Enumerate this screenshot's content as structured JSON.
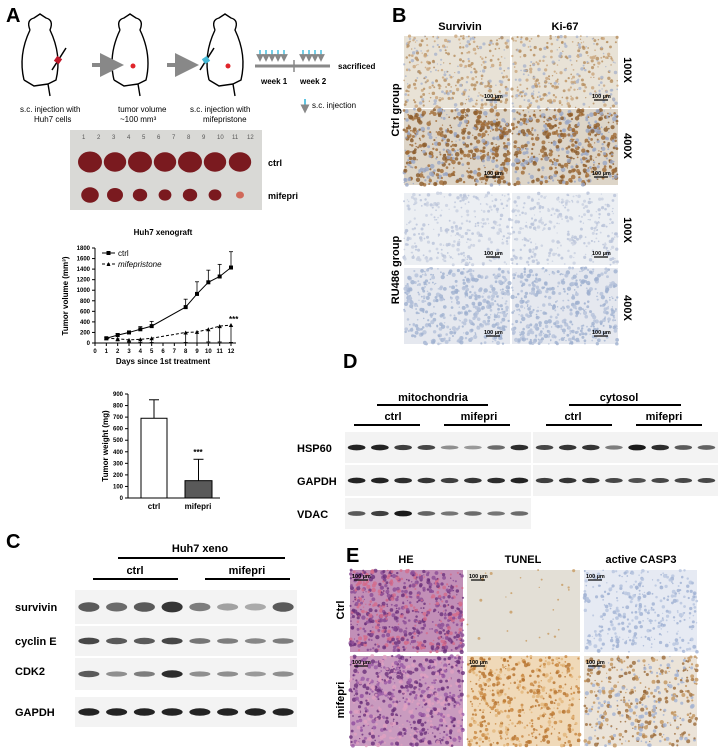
{
  "panels": {
    "a": "A",
    "b": "B",
    "c": "C",
    "d": "D",
    "e": "E"
  },
  "schematic": {
    "step1": [
      "s.c. injection with",
      "Huh7 cells"
    ],
    "step2": [
      "tumor volume",
      "~100 mm³"
    ],
    "step3": [
      "s.c. injection with",
      "mifepristone"
    ],
    "week1": "week 1",
    "week2": "week 2",
    "sacrificed": "sacrificed",
    "legend": "s.c. injection",
    "arrow_color": "#2ab3d9",
    "tumor_color": "#e0242a"
  },
  "tumor_photo": {
    "row_labels": [
      "ctrl",
      "mifepri"
    ],
    "ruler_numbers": [
      "1",
      "2",
      "3",
      "4",
      "5",
      "6",
      "7",
      "8",
      "9",
      "10",
      "11",
      "12"
    ]
  },
  "chart_data": [
    {
      "type": "line",
      "title": "Huh7 xenograft",
      "xlabel": "Days since 1st treatment",
      "ylabel": "Tumor volume (mm³)",
      "xlim": [
        0,
        12
      ],
      "ylim": [
        0,
        1800
      ],
      "xticks": [
        0,
        1,
        2,
        3,
        4,
        5,
        6,
        7,
        8,
        9,
        10,
        11,
        12
      ],
      "yticks": [
        0,
        200,
        400,
        600,
        800,
        1000,
        1200,
        1400,
        1600,
        1800
      ],
      "legend_position": "top-left",
      "x": [
        1,
        2,
        3,
        4,
        5,
        8,
        9,
        10,
        11,
        12
      ],
      "series": [
        {
          "name": "ctrl",
          "marker": "square",
          "style": "solid",
          "values": [
            90,
            150,
            200,
            260,
            320,
            680,
            930,
            1150,
            1260,
            1430
          ],
          "error": [
            15,
            30,
            25,
            50,
            90,
            150,
            230,
            230,
            230,
            300
          ]
        },
        {
          "name": "mifepristone",
          "marker": "triangle",
          "style": "dashed",
          "values": [
            90,
            80,
            60,
            70,
            90,
            200,
            210,
            260,
            320,
            340
          ],
          "error": [
            20,
            40,
            50,
            60,
            80,
            190,
            210,
            240,
            300,
            330
          ]
        }
      ],
      "annotation": "***"
    },
    {
      "type": "bar",
      "ylabel": "Tumor weight (mg)",
      "categories": [
        "ctrl",
        "mifepri"
      ],
      "values": [
        690,
        150
      ],
      "error": [
        160,
        185
      ],
      "colors": [
        "#ffffff",
        "#595959"
      ],
      "ylim": [
        0,
        900
      ],
      "yticks": [
        0,
        100,
        200,
        300,
        400,
        500,
        600,
        700,
        800,
        900
      ],
      "annotation": "***"
    }
  ],
  "ihc": {
    "columns": [
      "Survivin",
      "Ki-67"
    ],
    "groups": [
      "Ctrl group",
      "RU486 group"
    ],
    "magnifications": [
      "100X",
      "400X",
      "100X",
      "400X"
    ],
    "scale": "100 µm"
  },
  "blot_d": {
    "mito": "mitochondria",
    "cyto": "cytosol",
    "ctrl": "ctrl",
    "mifepri": "mifepri",
    "proteins": [
      "HSP60",
      "GAPDH",
      "VDAC"
    ],
    "mito_bands": [
      [
        0.9,
        0.9,
        0.75,
        0.7,
        0.3,
        0.25,
        0.5,
        0.85
      ],
      [
        0.9,
        0.9,
        0.85,
        0.8,
        0.75,
        0.8,
        0.85,
        0.9
      ],
      [
        0.6,
        0.75,
        0.95,
        0.55,
        0.45,
        0.5,
        0.45,
        0.5
      ]
    ],
    "cyto_bands": [
      [
        0.7,
        0.8,
        0.8,
        0.4,
        0.95,
        0.85,
        0.6,
        0.55
      ],
      [
        0.75,
        0.8,
        0.8,
        0.7,
        0.65,
        0.7,
        0.7,
        0.7
      ]
    ]
  },
  "blot_c": {
    "title": "Huh7 xeno",
    "ctrl": "ctrl",
    "mifepri": "mifepri",
    "proteins": [
      "survivin",
      "cyclin E",
      "CDK2",
      "GAPDH"
    ],
    "bands": [
      [
        0.6,
        0.5,
        0.6,
        0.8,
        0.4,
        0.2,
        0.15,
        0.6
      ],
      [
        0.7,
        0.6,
        0.6,
        0.7,
        0.45,
        0.4,
        0.35,
        0.4
      ],
      [
        0.6,
        0.3,
        0.4,
        0.85,
        0.3,
        0.3,
        0.25,
        0.3
      ],
      [
        0.9,
        0.9,
        0.9,
        0.9,
        0.9,
        0.9,
        0.9,
        0.9
      ]
    ]
  },
  "histo_e": {
    "columns": [
      "HE",
      "TUNEL",
      "active CASP3"
    ],
    "rows": [
      "Ctrl",
      "mifepri"
    ],
    "scale": "100 µm"
  }
}
